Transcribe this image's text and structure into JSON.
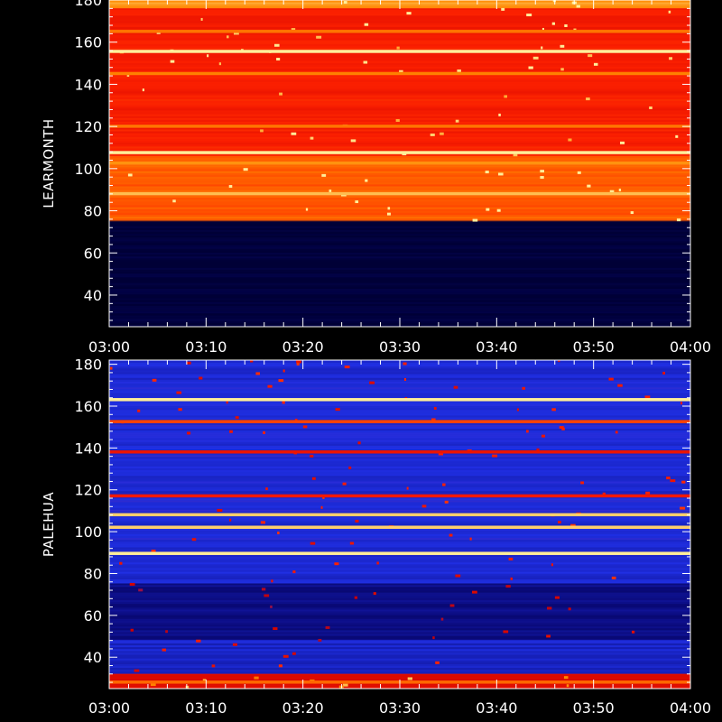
{
  "chart_data": [
    {
      "type": "heatmap",
      "ylabel": "LEARMONTH",
      "x_ticks": [
        "03:00",
        "03:10",
        "03:20",
        "03:30",
        "03:40",
        "03:50",
        "04:00"
      ],
      "y_ticks": [
        40,
        60,
        80,
        100,
        120,
        140,
        160,
        180
      ],
      "xlim": [
        "03:00",
        "04:00"
      ],
      "ylim": [
        25,
        180
      ],
      "colormap": [
        "#000033",
        "#0a0a78",
        "#2233ee",
        "#cc0000",
        "#ff2200",
        "#ff8800",
        "#ffee99"
      ],
      "background_level": 0.72,
      "level_bands": [
        {
          "from": 25,
          "to": 75,
          "level": 0.02
        },
        {
          "from": 75,
          "to": 106,
          "level": 0.76
        },
        {
          "from": 106,
          "to": 176,
          "level": 0.64
        },
        {
          "from": 176,
          "to": 180,
          "level": 0.86
        }
      ],
      "bright_lines": [
        {
          "y": 155.5,
          "level": 1.0
        },
        {
          "y": 107.5,
          "level": 1.0
        },
        {
          "y": 88.0,
          "level": 0.92
        },
        {
          "y": 102.5,
          "level": 0.85
        },
        {
          "y": 145.0,
          "level": 0.82
        },
        {
          "y": 165.0,
          "level": 0.8
        },
        {
          "y": 120.0,
          "level": 0.8
        }
      ]
    },
    {
      "type": "heatmap",
      "ylabel": "PALEHUA",
      "x_ticks": [
        "03:00",
        "03:10",
        "03:20",
        "03:30",
        "03:40",
        "03:50",
        "04:00"
      ],
      "y_ticks": [
        40,
        60,
        80,
        100,
        120,
        140,
        160,
        180
      ],
      "xlim": [
        "03:00",
        "04:00"
      ],
      "ylim": [
        25,
        182
      ],
      "colormap": [
        "#000033",
        "#0a0a78",
        "#2233ee",
        "#cc0000",
        "#ff2200",
        "#ff8800",
        "#ffee99"
      ],
      "background_level": 0.3,
      "level_bands": [
        {
          "from": 25,
          "to": 32,
          "level": 0.55
        },
        {
          "from": 32,
          "to": 48,
          "level": 0.28
        },
        {
          "from": 48,
          "to": 75,
          "level": 0.18
        },
        {
          "from": 75,
          "to": 182,
          "level": 0.3
        }
      ],
      "bright_lines": [
        {
          "y": 89.5,
          "level": 1.0
        },
        {
          "y": 102.0,
          "level": 0.95
        },
        {
          "y": 108.0,
          "level": 0.95
        },
        {
          "y": 163.0,
          "level": 1.0
        },
        {
          "y": 152.5,
          "level": 0.72
        },
        {
          "y": 117.0,
          "level": 0.62
        },
        {
          "y": 138.0,
          "level": 0.6
        },
        {
          "y": 28.0,
          "level": 0.78
        }
      ]
    }
  ]
}
